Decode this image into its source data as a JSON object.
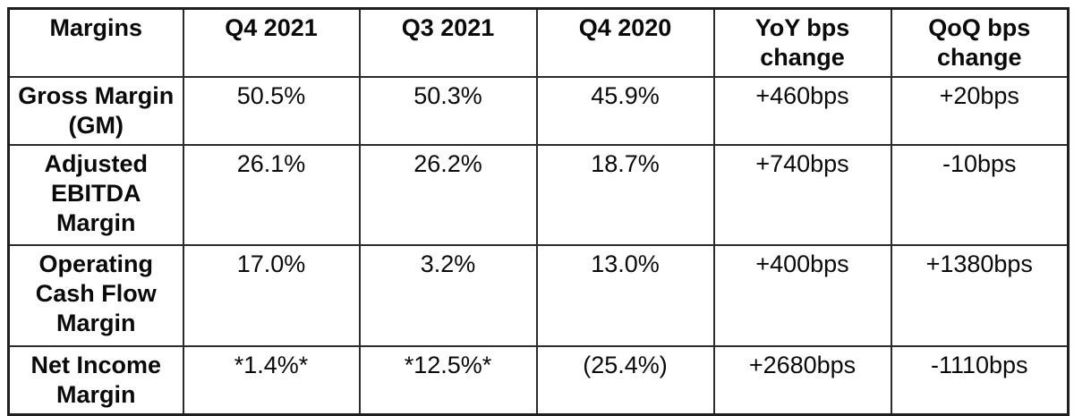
{
  "table": {
    "headers": [
      "Margins",
      "Q4 2021",
      "Q3 2021",
      "Q4 2020",
      "YoY bps\nchange",
      "QoQ bps\nchange"
    ],
    "rows": [
      {
        "label": "Gross Margin\n(GM)",
        "values": [
          "50.5%",
          "50.3%",
          "45.9%",
          "+460bps",
          "+20bps"
        ]
      },
      {
        "label": "Adjusted\nEBITDA\nMargin",
        "values": [
          "26.1%",
          "26.2%",
          "18.7%",
          "+740bps",
          "-10bps"
        ]
      },
      {
        "label": "Operating\nCash Flow\nMargin",
        "values": [
          "17.0%",
          "3.2%",
          "13.0%",
          "+400bps",
          "+1380bps"
        ]
      },
      {
        "label": "Net Income\nMargin",
        "values": [
          "*1.4%*",
          "*12.5%*",
          "(25.4%)",
          "+2680bps",
          "-1110bps"
        ]
      }
    ]
  },
  "colors": {
    "background": "#ffffff",
    "text": "#0a0a0a",
    "border_outer": "#1f1f1f",
    "border_inner": "#2b2b2b"
  },
  "chart_data": {
    "type": "table",
    "title": "Margins",
    "columns": [
      "Margins",
      "Q4 2021",
      "Q3 2021",
      "Q4 2020",
      "YoY bps change",
      "QoQ bps change"
    ],
    "rows": [
      [
        "Gross Margin (GM)",
        "50.5%",
        "50.3%",
        "45.9%",
        "+460bps",
        "+20bps"
      ],
      [
        "Adjusted EBITDA Margin",
        "26.1%",
        "26.2%",
        "18.7%",
        "+740bps",
        "-10bps"
      ],
      [
        "Operating Cash Flow Margin",
        "17.0%",
        "3.2%",
        "13.0%",
        "+400bps",
        "+1380bps"
      ],
      [
        "Net Income Margin",
        "*1.4%*",
        "*12.5%*",
        "(25.4%)",
        "+2680bps",
        "-1110bps"
      ]
    ],
    "yoy_bps_change": [
      460,
      740,
      400,
      2680
    ],
    "qoq_bps_change": [
      20,
      -10,
      1380,
      -1110
    ]
  }
}
